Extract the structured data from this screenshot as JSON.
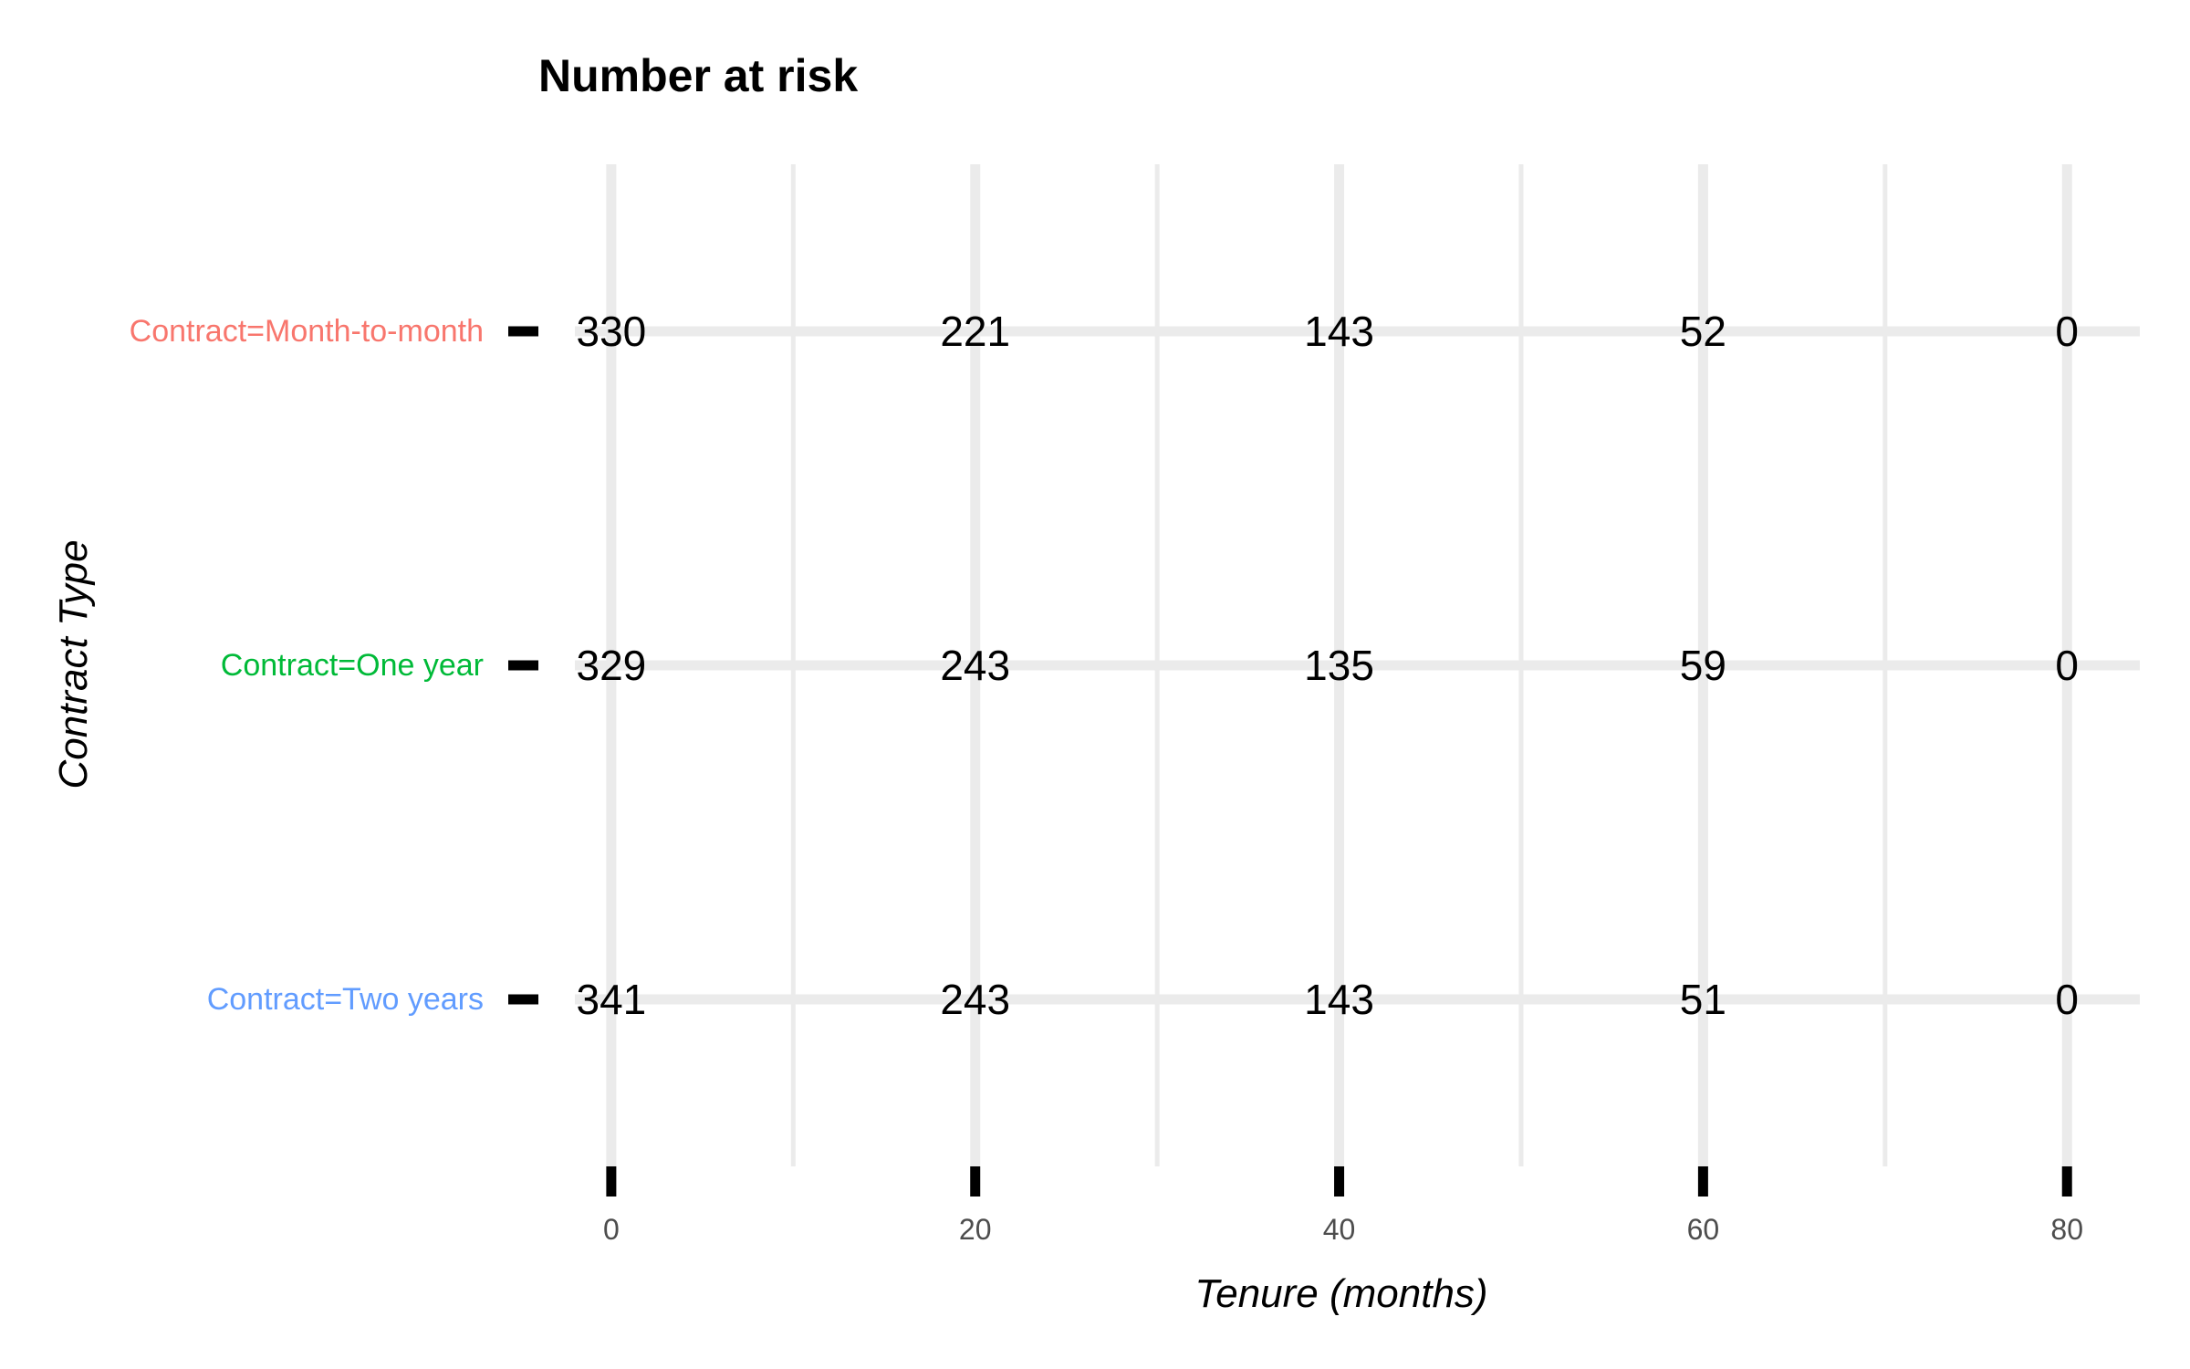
{
  "chart_data": {
    "type": "table",
    "title": "Number at risk",
    "xlabel": "Tenure (months)",
    "ylabel": "Contract Type",
    "xlim": [
      -2,
      84
    ],
    "x_ticks": [
      0,
      20,
      40,
      60,
      80
    ],
    "x_ticks_labels": [
      "0",
      "20",
      "40",
      "60",
      "80"
    ],
    "x_minor_ticks": [
      10,
      30,
      50,
      70
    ],
    "grid": true,
    "columns": [
      0,
      20,
      40,
      60,
      80
    ],
    "rows": [
      {
        "label": "Contract=Month-to-month",
        "color": "#F8766D",
        "values": [
          330,
          221,
          143,
          52,
          0
        ]
      },
      {
        "label": "Contract=One year",
        "color": "#00BA38",
        "values": [
          329,
          243,
          135,
          59,
          0
        ]
      },
      {
        "label": "Contract=Two years",
        "color": "#619CFF",
        "values": [
          341,
          243,
          143,
          51,
          0
        ]
      }
    ]
  }
}
